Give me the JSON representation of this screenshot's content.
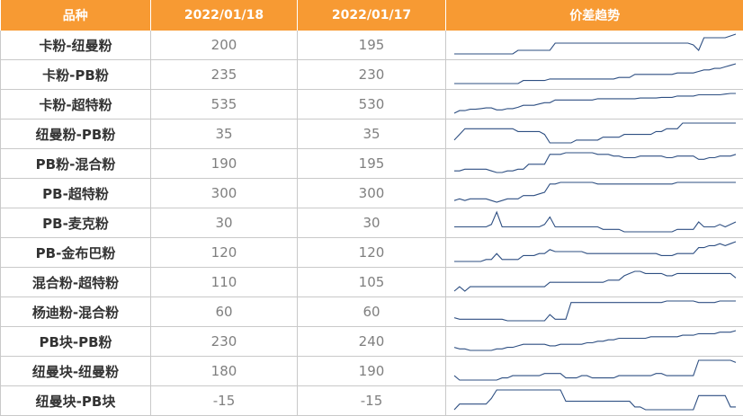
{
  "header": {
    "col_name": "品种",
    "col_date1": "2022/01/18",
    "col_date2": "2022/01/17",
    "col_trend": "价差趋势"
  },
  "colors": {
    "header_bg": "#f79a33",
    "sparkline": "#2e4f82"
  },
  "rows": [
    {
      "name": "卡粉-纽曼粉",
      "v1": "200",
      "v2": "195",
      "trend": [
        176,
        176,
        176,
        176,
        176,
        176,
        176,
        176,
        176,
        176,
        176,
        176,
        178,
        178,
        178,
        178,
        178,
        178,
        178,
        182,
        182,
        182,
        182,
        182,
        182,
        182,
        182,
        182,
        182,
        182,
        182,
        182,
        182,
        182,
        182,
        182,
        182,
        182,
        182,
        182,
        182,
        182,
        182,
        182,
        182,
        181,
        178,
        185,
        185,
        185,
        185,
        185,
        186,
        187
      ]
    },
    {
      "name": "卡粉-PB粉",
      "v1": "235",
      "v2": "230",
      "trend": [
        212,
        212,
        212,
        212,
        212,
        212,
        212,
        212,
        212,
        212,
        212,
        212,
        212,
        214,
        214,
        214,
        214,
        214,
        215,
        215,
        215,
        215,
        215,
        215,
        215,
        215,
        215,
        215,
        215,
        215,
        215,
        216,
        216,
        216,
        218,
        218,
        218,
        218,
        218,
        218,
        218,
        218,
        219,
        219,
        219,
        219,
        220,
        221,
        221,
        222,
        222,
        223,
        224,
        225
      ]
    },
    {
      "name": "卡粉-超特粉",
      "v1": "535",
      "v2": "530",
      "trend": [
        504,
        508,
        508,
        510,
        510,
        511,
        512,
        512,
        509,
        509,
        511,
        511,
        513,
        516,
        516,
        516,
        518,
        520,
        520,
        524,
        524,
        524,
        524,
        524,
        524,
        524,
        524,
        526,
        526,
        526,
        526,
        526,
        526,
        526,
        526,
        527,
        527,
        527,
        527,
        528,
        528,
        528,
        530,
        530,
        530,
        530,
        532,
        532,
        532,
        532,
        532,
        533,
        534,
        534
      ]
    },
    {
      "name": "纽曼粉-PB粉",
      "v1": "35",
      "v2": "35",
      "trend": [
        18,
        22,
        26,
        26,
        26,
        26,
        26,
        26,
        26,
        26,
        26,
        26,
        24,
        24,
        24,
        24,
        24,
        22,
        16,
        16,
        16,
        16,
        16,
        18,
        18,
        18,
        18,
        18,
        20,
        20,
        20,
        20,
        22,
        22,
        22,
        22,
        22,
        22,
        24,
        24,
        26,
        26,
        26,
        30,
        30,
        30,
        30,
        30,
        30,
        30,
        30,
        30,
        30,
        30
      ]
    },
    {
      "name": "PB粉-混合粉",
      "v1": "190",
      "v2": "195",
      "trend": [
        178,
        178,
        180,
        180,
        180,
        180,
        180,
        178,
        176,
        176,
        178,
        178,
        180,
        180,
        186,
        186,
        186,
        186,
        198,
        198,
        198,
        200,
        200,
        200,
        200,
        200,
        200,
        198,
        198,
        198,
        196,
        196,
        194,
        194,
        194,
        196,
        196,
        196,
        196,
        196,
        194,
        194,
        196,
        196,
        196,
        196,
        192,
        192,
        194,
        194,
        196,
        196,
        196,
        198
      ]
    },
    {
      "name": "PB-超特粉",
      "v1": "300",
      "v2": "300",
      "trend": [
        286,
        288,
        286,
        288,
        288,
        288,
        288,
        286,
        284,
        286,
        288,
        288,
        288,
        292,
        292,
        292,
        294,
        296,
        306,
        306,
        308,
        308,
        308,
        308,
        308,
        308,
        308,
        306,
        306,
        306,
        306,
        306,
        306,
        306,
        306,
        306,
        306,
        306,
        306,
        306,
        306,
        306,
        308,
        308,
        308,
        308,
        308,
        308,
        308,
        308,
        308,
        308,
        308,
        308
      ]
    },
    {
      "name": "PB-麦克粉",
      "v1": "30",
      "v2": "30",
      "trend": [
        26,
        26,
        26,
        26,
        26,
        26,
        26,
        28,
        38,
        26,
        26,
        26,
        26,
        26,
        26,
        26,
        26,
        28,
        34,
        26,
        26,
        26,
        26,
        26,
        26,
        26,
        26,
        26,
        24,
        24,
        24,
        24,
        22,
        22,
        22,
        22,
        22,
        22,
        22,
        22,
        22,
        22,
        24,
        24,
        24,
        24,
        30,
        26,
        26,
        26,
        28,
        26,
        28,
        30
      ]
    },
    {
      "name": "PB-金布巴粉",
      "v1": "120",
      "v2": "120",
      "trend": [
        110,
        110,
        110,
        110,
        110,
        110,
        112,
        112,
        118,
        112,
        112,
        112,
        112,
        116,
        116,
        116,
        118,
        118,
        122,
        120,
        120,
        120,
        120,
        120,
        120,
        118,
        118,
        118,
        118,
        118,
        118,
        118,
        118,
        118,
        118,
        118,
        118,
        118,
        118,
        116,
        116,
        116,
        118,
        118,
        118,
        118,
        124,
        124,
        126,
        126,
        128,
        126,
        128,
        130
      ]
    },
    {
      "name": "混合粉-超特粉",
      "v1": "110",
      "v2": "105",
      "trend": [
        100,
        104,
        100,
        104,
        104,
        104,
        104,
        104,
        104,
        104,
        104,
        104,
        104,
        104,
        104,
        104,
        104,
        104,
        108,
        108,
        108,
        108,
        108,
        108,
        108,
        108,
        108,
        108,
        108,
        110,
        110,
        110,
        114,
        116,
        118,
        118,
        116,
        116,
        116,
        116,
        114,
        114,
        116,
        116,
        116,
        116,
        116,
        116,
        116,
        116,
        116,
        116,
        116,
        112
      ]
    },
    {
      "name": "杨迪粉-混合粉",
      "v1": "60",
      "v2": "60",
      "trend": [
        46,
        44,
        44,
        44,
        44,
        44,
        44,
        44,
        44,
        44,
        42,
        42,
        42,
        42,
        42,
        42,
        42,
        42,
        50,
        44,
        44,
        44,
        66,
        66,
        66,
        66,
        66,
        66,
        66,
        66,
        66,
        66,
        66,
        66,
        66,
        66,
        66,
        66,
        66,
        66,
        68,
        68,
        68,
        68,
        68,
        68,
        66,
        66,
        66,
        66,
        68,
        68,
        68,
        68
      ]
    },
    {
      "name": "PB块-PB粉",
      "v1": "230",
      "v2": "240",
      "trend": [
        218,
        216,
        216,
        214,
        214,
        214,
        214,
        214,
        216,
        216,
        218,
        218,
        220,
        222,
        222,
        222,
        222,
        222,
        220,
        220,
        222,
        222,
        222,
        222,
        222,
        224,
        224,
        226,
        226,
        228,
        228,
        230,
        230,
        230,
        230,
        230,
        230,
        232,
        232,
        232,
        232,
        232,
        232,
        234,
        234,
        234,
        236,
        236,
        236,
        236,
        238,
        238,
        238,
        240
      ]
    },
    {
      "name": "纽曼块-纽曼粉",
      "v1": "180",
      "v2": "190",
      "trend": [
        176,
        172,
        172,
        172,
        172,
        172,
        172,
        172,
        172,
        174,
        174,
        176,
        176,
        176,
        176,
        176,
        176,
        178,
        178,
        178,
        178,
        174,
        174,
        174,
        176,
        176,
        174,
        174,
        174,
        174,
        174,
        176,
        176,
        176,
        176,
        176,
        176,
        176,
        178,
        178,
        176,
        176,
        176,
        176,
        176,
        176,
        190,
        190,
        190,
        190,
        190,
        190,
        190,
        188
      ]
    },
    {
      "name": "纽曼块-PB块",
      "v1": "-15",
      "v2": "-15",
      "trend": [
        -30,
        -26,
        -26,
        -26,
        -26,
        -26,
        -26,
        -22,
        -16,
        -16,
        -16,
        -16,
        -16,
        -16,
        -16,
        -16,
        -16,
        -16,
        -16,
        -16,
        -16,
        -24,
        -24,
        -24,
        -24,
        -24,
        -24,
        -24,
        -24,
        -24,
        -24,
        -24,
        -24,
        -24,
        -28,
        -28,
        -30,
        -30,
        -30,
        -30,
        -30,
        -30,
        -30,
        -30,
        -30,
        -30,
        -20,
        -20,
        -20,
        -20,
        -20,
        -20,
        -28,
        -28
      ]
    }
  ]
}
